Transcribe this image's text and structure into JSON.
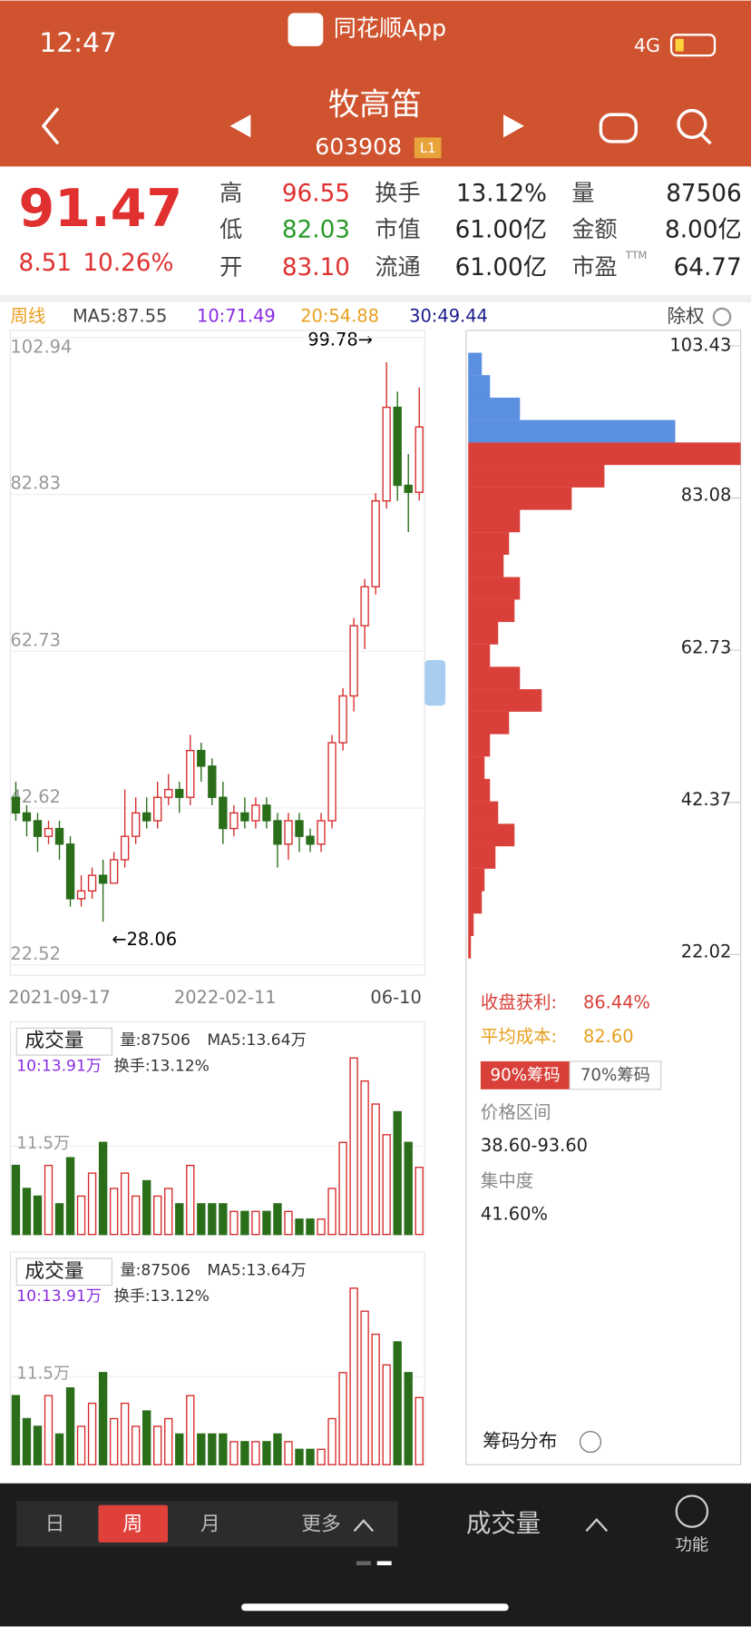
{
  "status_bar": {
    "time": "12:47",
    "app": "同花顺App",
    "network": "4G"
  },
  "header": {
    "name": "牧高笛",
    "code": "603908",
    "badge": "L1"
  },
  "quote": {
    "price": 91.47,
    "change": 8.51,
    "change_pct": "10.26%",
    "fields": [
      {
        "label": "高",
        "value": "96.55",
        "color": "#e03030"
      },
      {
        "label": "换手",
        "value": "13.12%",
        "color": "#222"
      },
      {
        "label": "量",
        "value": "87506",
        "color": "#222"
      },
      {
        "label": "低",
        "value": "82.03",
        "color": "#2a9a2a"
      },
      {
        "label": "市值",
        "value": "61.00亿",
        "color": "#222"
      },
      {
        "label": "金额",
        "value": "8.00亿",
        "color": "#222"
      },
      {
        "label": "开",
        "value": "83.10",
        "color": "#e03030"
      },
      {
        "label": "流通",
        "value": "61.00亿",
        "color": "#222"
      },
      {
        "label": "市盈",
        "value": "64.77",
        "color": "#222"
      }
    ],
    "pe_note": "TTM"
  },
  "ma_legend": {
    "period": "周线",
    "adjust": "除权",
    "items": [
      {
        "text": "MA5:87.55",
        "color": "#444"
      },
      {
        "text": "10:71.49",
        "color": "#8a2be2"
      },
      {
        "text": "20:54.88",
        "color": "#e8a020"
      },
      {
        "text": "30:49.44",
        "color": "#1a1a8a"
      }
    ]
  },
  "kline": {
    "type": "candlestick",
    "up_color": "#d62c2c",
    "down_color": "#2a6e1a",
    "open": [
      44,
      42,
      41,
      39,
      40,
      38,
      31,
      32,
      34,
      33,
      36,
      39,
      42,
      41,
      44,
      45,
      44,
      50,
      48,
      44,
      40,
      42,
      41,
      43,
      41,
      38,
      41,
      39,
      38,
      41,
      51,
      57,
      66,
      71,
      82,
      94,
      84,
      83.1
    ],
    "close": [
      42,
      41,
      39,
      40,
      38,
      31,
      32,
      34,
      33,
      36,
      39,
      42,
      41,
      44,
      45,
      44,
      50,
      48,
      44,
      40,
      42,
      41,
      43,
      41,
      38,
      41,
      39,
      38,
      41,
      51,
      57,
      66,
      71,
      82,
      94,
      84,
      83.1,
      91.47
    ],
    "high": [
      46,
      43,
      42,
      41,
      41,
      39,
      34,
      35,
      36,
      37,
      45,
      44,
      44,
      46,
      47,
      46,
      52,
      51,
      49,
      46,
      43,
      44,
      44,
      44,
      42,
      42,
      42,
      40,
      42,
      52,
      58,
      67,
      72,
      83,
      99.78,
      96,
      88,
      96.55
    ],
    "low": [
      41,
      39,
      37,
      38,
      36,
      30,
      30,
      31,
      28.06,
      33,
      35,
      38,
      40,
      40,
      43,
      42,
      43,
      46,
      43,
      38,
      39,
      40,
      40,
      40,
      35,
      36,
      37,
      37,
      37,
      40,
      50,
      55,
      63,
      70,
      81,
      82,
      78,
      82.03
    ],
    "ylim": [
      22.52,
      102.94
    ],
    "yticks": [
      102.94,
      82.83,
      62.73,
      42.62,
      22.52
    ],
    "xlabels": [
      "2021-09-17",
      "2022-02-11",
      "06-10"
    ],
    "max_label": "99.78→",
    "min_label": "←28.06"
  },
  "volume": {
    "values": [
      9,
      6,
      5,
      9,
      4,
      10,
      5,
      8,
      12,
      6,
      8,
      5,
      7,
      5,
      6,
      4,
      9,
      4,
      4,
      4,
      3,
      3,
      3,
      3,
      4,
      3,
      2,
      2,
      2,
      6,
      12,
      23,
      20,
      17,
      13,
      16,
      12,
      8.75
    ],
    "ylim": [
      0,
      25
    ],
    "yticks": [
      {
        "value": 11.5,
        "label": "11.5万"
      }
    ],
    "panels": [
      {
        "selector": "成交量",
        "info": [
          "量:87506",
          "MA5:13.64万",
          "10:13.91万",
          "换手:13.12%"
        ]
      },
      {
        "selector": "成交量",
        "info": [
          "量:87506",
          "MA5:13.64万",
          "10:13.91万",
          "换手:13.12%"
        ]
      }
    ]
  },
  "chips": {
    "prices": [
      101,
      98,
      95,
      92,
      89,
      86,
      83,
      80,
      77,
      74,
      71,
      68,
      65,
      62,
      59,
      56,
      53,
      50,
      47,
      44,
      41,
      38,
      35,
      32,
      29,
      26,
      23
    ],
    "amounts": [
      5,
      8,
      19,
      76,
      100,
      50,
      38,
      19,
      15,
      13,
      19,
      17,
      11,
      8,
      19,
      27,
      15,
      8,
      6,
      8,
      11,
      17,
      10,
      6,
      5,
      2,
      1
    ],
    "xlim": [
      0,
      100
    ],
    "ylim": [
      22.02,
      103.43
    ],
    "yticks": [
      103.43,
      83.08,
      62.73,
      42.37,
      22.02
    ],
    "profit_color": "#d9403a",
    "loss_color": "#5b8fe0",
    "info": {
      "profit_label": "收盘获利:",
      "profit": "86.44%",
      "cost_label": "平均成本:",
      "cost": "82.60",
      "tab1": "90%筹码",
      "tab2": "70%筹码",
      "range_label": "价格区间",
      "range": "38.60-93.60",
      "conc_label": "集中度",
      "conc": "41.60%",
      "footer": "筹码分布"
    }
  },
  "bottom_bar": {
    "tabs": [
      "日",
      "周",
      "月",
      "更多"
    ],
    "indicator": "成交量",
    "function": "功能"
  }
}
